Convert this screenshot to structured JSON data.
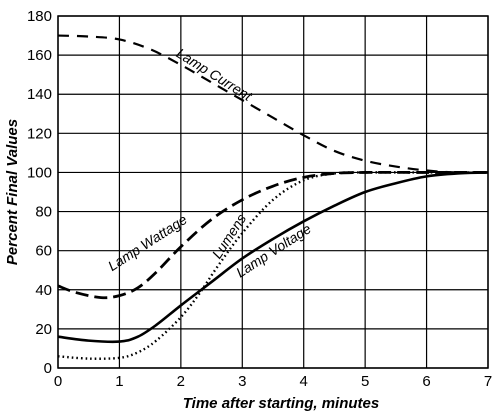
{
  "chart_data": {
    "type": "line",
    "xlabel": "Time after starting, minutes",
    "ylabel": "Percent Final Values",
    "xlim": [
      0,
      7
    ],
    "ylim": [
      0,
      180
    ],
    "xticks": [
      0,
      1,
      2,
      3,
      4,
      5,
      6,
      7
    ],
    "yticks": [
      0,
      20,
      40,
      60,
      80,
      100,
      120,
      140,
      160,
      180
    ],
    "grid": true,
    "series": [
      {
        "name": "Lamp Current",
        "style": "dashed",
        "points": [
          [
            0,
            170
          ],
          [
            0.5,
            169.5
          ],
          [
            1,
            168
          ],
          [
            1.5,
            163
          ],
          [
            2,
            155
          ],
          [
            2.5,
            146
          ],
          [
            3,
            137
          ],
          [
            3.5,
            128
          ],
          [
            4,
            119
          ],
          [
            4.5,
            111
          ],
          [
            5,
            106
          ],
          [
            5.5,
            103
          ],
          [
            6,
            101
          ],
          [
            6.5,
            100
          ],
          [
            7,
            100
          ]
        ]
      },
      {
        "name": "Lamp Wattage",
        "style": "long-dash",
        "points": [
          [
            0,
            42
          ],
          [
            0.3,
            38.5
          ],
          [
            0.7,
            36
          ],
          [
            1,
            37
          ],
          [
            1.3,
            41
          ],
          [
            1.6,
            49
          ],
          [
            2,
            62
          ],
          [
            2.5,
            76
          ],
          [
            3,
            86
          ],
          [
            3.5,
            93
          ],
          [
            4,
            97.5
          ],
          [
            4.5,
            99.5
          ],
          [
            5,
            100
          ],
          [
            6,
            100
          ],
          [
            7,
            100
          ]
        ]
      },
      {
        "name": "Lumens",
        "style": "dotted",
        "points": [
          [
            0,
            6
          ],
          [
            0.5,
            4.8
          ],
          [
            1,
            5.2
          ],
          [
            1.3,
            8
          ],
          [
            1.6,
            14
          ],
          [
            2,
            26
          ],
          [
            2.3,
            38
          ],
          [
            2.6,
            52
          ],
          [
            3,
            69
          ],
          [
            3.5,
            86
          ],
          [
            4,
            96
          ],
          [
            4.5,
            99.5
          ],
          [
            5,
            100
          ],
          [
            6,
            100
          ],
          [
            7,
            100
          ]
        ]
      },
      {
        "name": "Lamp Voltage",
        "style": "solid",
        "points": [
          [
            0,
            16
          ],
          [
            0.5,
            14
          ],
          [
            1,
            13.5
          ],
          [
            1.3,
            16
          ],
          [
            1.6,
            22
          ],
          [
            2,
            32
          ],
          [
            2.5,
            44
          ],
          [
            3,
            56
          ],
          [
            3.5,
            66
          ],
          [
            4,
            75
          ],
          [
            4.5,
            83
          ],
          [
            5,
            90
          ],
          [
            5.5,
            94.5
          ],
          [
            6,
            98
          ],
          [
            6.5,
            99.5
          ],
          [
            7,
            100
          ]
        ]
      }
    ],
    "annotations": [
      {
        "text": "Lamp Current",
        "x": 2.5,
        "y": 148,
        "angle": 32
      },
      {
        "text": "Lamp Wattage",
        "x": 1.5,
        "y": 62,
        "angle": -33
      },
      {
        "text": "Lumens",
        "x": 2.85,
        "y": 66,
        "angle": -57
      },
      {
        "text": "Lamp Voltage",
        "x": 3.55,
        "y": 58,
        "angle": -33
      }
    ]
  }
}
